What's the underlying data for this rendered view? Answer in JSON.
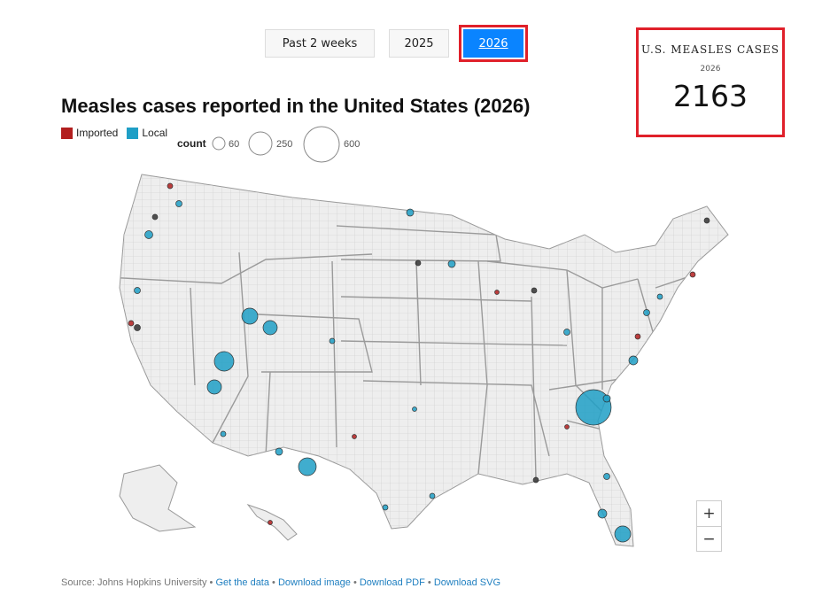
{
  "tabs": [
    {
      "label": "Past 2 weeks",
      "active": false
    },
    {
      "label": "2025",
      "active": false
    },
    {
      "label": "2026",
      "active": true
    }
  ],
  "stat": {
    "label": "U.S. MEASLES CASES",
    "year": "2026",
    "value": "2163"
  },
  "title": "Measles cases reported in the United States (2026)",
  "legend": {
    "imported": "Imported",
    "local": "Local",
    "count_label": "count",
    "sizes": [
      60,
      250,
      600
    ]
  },
  "colors": {
    "imported": "#b21f1f",
    "local": "#1f9fc6",
    "unknown": "#333333",
    "active_tab": "#0a84ff",
    "highlight": "#e0202a"
  },
  "zoom": {
    "in": "+",
    "out": "−"
  },
  "footer": {
    "source": "Source: Johns Hopkins University",
    "sep": " • ",
    "links": [
      "Get the data",
      "Download image",
      "Download PDF",
      "Download SVG"
    ]
  }
}
